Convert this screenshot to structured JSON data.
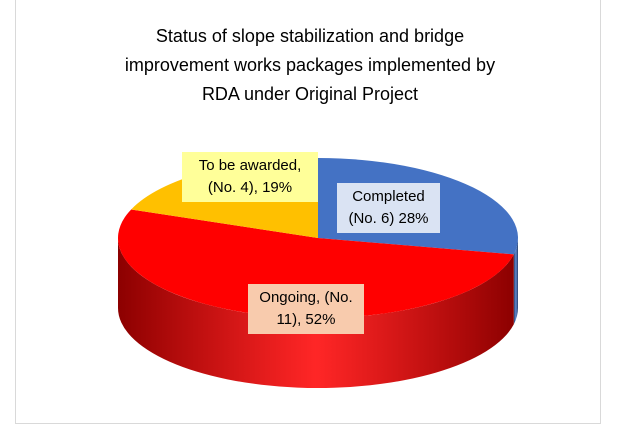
{
  "chart_data": {
    "type": "pie3d",
    "title": "Status of slope stabilization and bridge improvement works packages implemented by RDA under Original Project",
    "values": [
      28,
      52,
      19
    ],
    "value_labels": [
      "Completed (No. 6) 28%",
      "Ongoing, (No. 11), 52%",
      "To be awarded, (No. 4), 19%"
    ],
    "colors": [
      "#4472c4",
      "#ff0000",
      "#ffc000"
    ],
    "label_colors": [
      "#dae3f3",
      "#f8cbad",
      "#ffff99"
    ]
  }
}
